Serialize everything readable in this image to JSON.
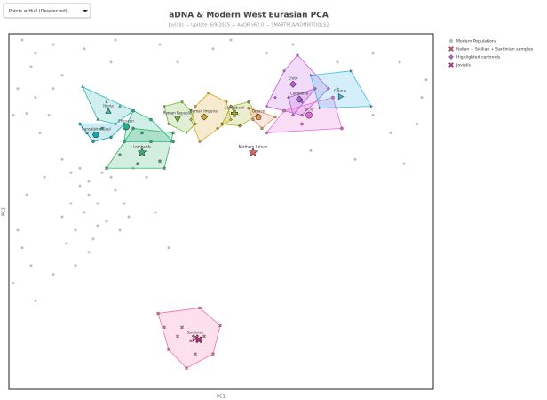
{
  "controls": {
    "dropdown": "Points = Hull (Deselected)"
  },
  "chart_data": {
    "type": "scatter",
    "title": "aDNA & Modern West Eurasian PCA",
    "subtitle": "Jovialis — Update: 6/9/2025 — AADR v62.0 — SMARTPCA/ADMIXTOOLS2",
    "xlabel": "PC1",
    "ylabel": "PC2",
    "xlim": [
      0,
      478
    ],
    "ylim": [
      0,
      402
    ],
    "legend_position": "outside-right",
    "series": [
      {
        "name": "Modern Populations",
        "color": "#bdbdbd",
        "marker": "circle",
        "x": [
          15,
          30,
          25,
          50,
          85,
          120,
          115,
          170,
          190,
          230,
          250,
          5,
          20,
          35,
          45,
          60,
          40,
          20,
          10,
          25,
          5,
          15,
          70,
          80,
          90,
          100,
          85,
          110,
          75,
          95,
          65,
          120,
          130,
          115,
          105,
          80,
          90,
          70,
          60,
          100,
          125,
          135,
          90,
          75,
          50,
          30,
          140,
          155,
          165,
          180,
          410,
          440,
          470,
          430,
          390,
          445,
          460,
          340,
          410,
          465,
          290,
          320,
          370,
          10,
          50,
          60,
          30
        ],
        "y": [
          395,
          380,
          365,
          390,
          385,
          395,
          370,
          390,
          370,
          385,
          395,
          310,
          312,
          290,
          310,
          260,
          240,
          220,
          180,
          140,
          120,
          160,
          245,
          230,
          220,
          210,
          200,
          190,
          180,
          170,
          165,
          225,
          210,
          240,
          245,
          250,
          235,
          210,
          195,
          185,
          180,
          195,
          155,
          140,
          130,
          100,
          250,
          240,
          200,
          160,
          380,
          370,
          350,
          290,
          260,
          255,
          300,
          270,
          310,
          330,
          380,
          390,
          370,
          340,
          340,
          355,
          330
        ]
      },
      {
        "name": "Italian + Sicilian + Sardinian samples",
        "color": "#e23b7a",
        "marker": "x"
      },
      {
        "name": "Highlighted centroids",
        "color": "#b060d8",
        "marker": "diamond"
      },
      {
        "name": "Jovialis",
        "color": "#d02090",
        "marker": "x",
        "x": [
          214
        ],
        "y": [
          56
        ]
      }
    ],
    "groups": [
      {
        "label": "Iberia",
        "color": "#2ab7b1",
        "marker": "triangle",
        "centroid": [
          112,
          314
        ],
        "x": [
          83,
          140,
          120,
          100,
          110,
          125
        ],
        "y": [
          342,
          315,
          300,
          305,
          325,
          320
        ]
      },
      {
        "label": "Transalpine Gaul",
        "color": "#13a3b5",
        "marker": "hexagon",
        "centroid": [
          98,
          288
        ],
        "x": [
          88,
          95,
          105,
          130,
          80,
          115
        ],
        "y": [
          290,
          280,
          295,
          300,
          300,
          285
        ]
      },
      {
        "label": "Etruscan",
        "color": "#22b08c",
        "marker": "circle",
        "centroid": [
          132,
          297
        ],
        "x": [
          140,
          185,
          130,
          150,
          160
        ],
        "y": [
          315,
          280,
          280,
          290,
          305
        ]
      },
      {
        "label": "Lombards",
        "color": "#33b36a",
        "marker": "star",
        "centroid": [
          150,
          268
        ],
        "x": [
          110,
          175,
          185,
          140,
          160,
          125,
          170,
          145
        ],
        "y": [
          250,
          250,
          290,
          295,
          280,
          265,
          258,
          255
        ]
      },
      {
        "label": "Roman Republic",
        "color": "#74b835",
        "marker": "triangle-down",
        "centroid": [
          190,
          306
        ],
        "x": [
          175,
          205,
          200,
          180,
          195,
          210
        ],
        "y": [
          320,
          315,
          290,
          300,
          325,
          300
        ]
      },
      {
        "label": "Roman Imperial",
        "color": "#d4a520",
        "marker": "diamond",
        "centroid": [
          220,
          308
        ],
        "x": [
          205,
          225,
          245,
          250,
          215,
          235,
          210
        ],
        "y": [
          305,
          335,
          325,
          305,
          280,
          295,
          320
        ]
      },
      {
        "label": "Langobard",
        "color": "#a5b020",
        "marker": "plus",
        "centroid": [
          254,
          312
        ],
        "x": [
          240,
          270,
          280,
          260,
          250
        ],
        "y": [
          300,
          325,
          310,
          298,
          320
        ]
      },
      {
        "label": "Greece",
        "color": "#e8935a",
        "marker": "pentagon",
        "centroid": [
          281,
          308
        ],
        "x": [
          270,
          300,
          285,
          275
        ],
        "y": [
          318,
          308,
          295,
          305
        ]
      },
      {
        "label": "Crete",
        "color": "#c45ce0",
        "marker": "diamond",
        "centroid": [
          320,
          345
        ],
        "x": [
          290,
          325,
          360,
          330,
          310,
          300
        ],
        "y": [
          320,
          378,
          340,
          310,
          360,
          330
        ]
      },
      {
        "label": "Campania",
        "color": "#b060d8",
        "marker": "diamond",
        "centroid": [
          327,
          328
        ],
        "x": [
          320,
          345,
          330,
          315
        ],
        "y": [
          310,
          340,
          325,
          330
        ]
      },
      {
        "label": "Sicily",
        "color": "#e86bd8",
        "marker": "circle",
        "centroid": [
          338,
          310
        ],
        "x": [
          290,
          375,
          365,
          330,
          310
        ],
        "y": [
          290,
          295,
          330,
          300,
          315
        ]
      },
      {
        "label": "Cyprus",
        "color": "#3cb8e8",
        "marker": "triangle-right",
        "centroid": [
          373,
          331
        ],
        "x": [
          340,
          385,
          408,
          350,
          370
        ],
        "y": [
          355,
          360,
          320,
          318,
          340
        ]
      },
      {
        "label": "Northern Latium",
        "color": "#f06060",
        "marker": "star",
        "centroid": [
          275,
          268
        ],
        "x": [],
        "y": []
      },
      {
        "label": "Sardinian",
        "color": "#f070a8",
        "marker": "x",
        "centroid": [
          210,
          58
        ],
        "x": [
          168,
          215,
          238,
          230,
          200,
          180,
          195,
          205,
          220,
          190,
          175,
          210
        ],
        "y": [
          86,
          92,
          72,
          40,
          24,
          45,
          70,
          55,
          60,
          60,
          70,
          40
        ]
      }
    ]
  }
}
